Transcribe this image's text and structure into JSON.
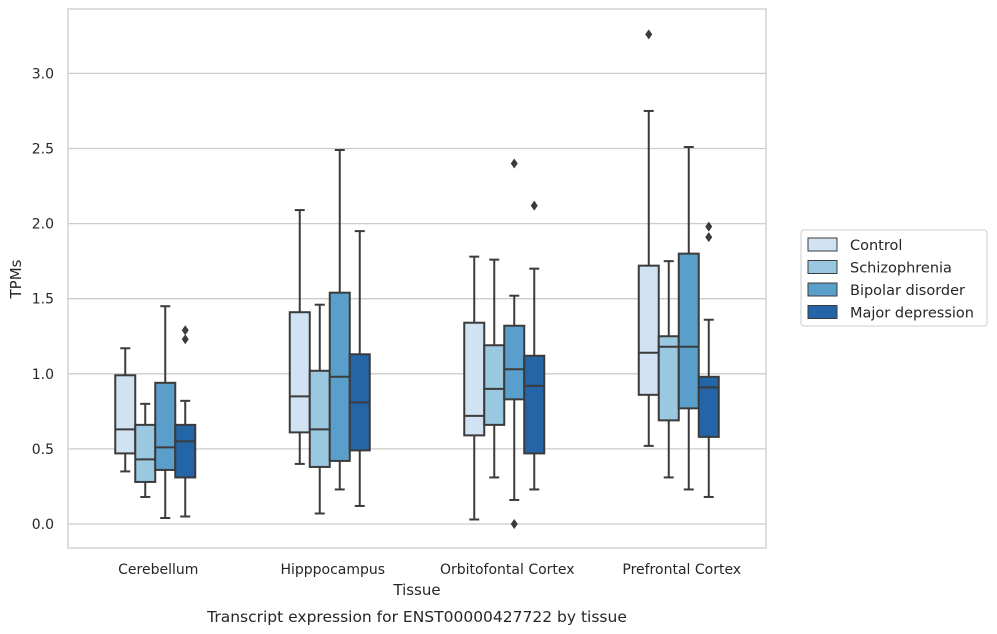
{
  "chart_data": {
    "type": "box",
    "caption": "Transcript expression for ENST00000427722 by tissue",
    "xlabel": "Tissue",
    "ylabel": "TPMs",
    "ylim": [
      -0.15,
      3.45
    ],
    "yticks": [
      0.0,
      0.5,
      1.0,
      1.5,
      2.0,
      2.5,
      3.0
    ],
    "ytick_labels": [
      "0.0",
      "0.5",
      "1.0",
      "1.5",
      "2.0",
      "2.5",
      "3.0"
    ],
    "grid": "horizontal",
    "legend_position": "right",
    "categories": [
      "Cerebellum",
      "Hipppocampus",
      "Orbitofontal Cortex",
      "Prefrontal Cortex"
    ],
    "series": [
      {
        "name": "Control",
        "color": "#d1e2f2",
        "boxes": [
          {
            "whislo": 0.35,
            "q1": 0.47,
            "med": 0.63,
            "q3": 0.99,
            "whishi": 1.17,
            "fliers": []
          },
          {
            "whislo": 0.4,
            "q1": 0.61,
            "med": 0.85,
            "q3": 1.41,
            "whishi": 2.09,
            "fliers": []
          },
          {
            "whislo": 0.03,
            "q1": 0.59,
            "med": 0.72,
            "q3": 1.34,
            "whishi": 1.78,
            "fliers": []
          },
          {
            "whislo": 0.52,
            "q1": 0.86,
            "med": 1.14,
            "q3": 1.72,
            "whishi": 2.75,
            "fliers": [
              3.26
            ]
          }
        ]
      },
      {
        "name": "Schizophrenia",
        "color": "#9ac8e0",
        "boxes": [
          {
            "whislo": 0.18,
            "q1": 0.28,
            "med": 0.43,
            "q3": 0.66,
            "whishi": 0.8,
            "fliers": []
          },
          {
            "whislo": 0.07,
            "q1": 0.38,
            "med": 0.63,
            "q3": 1.02,
            "whishi": 1.46,
            "fliers": []
          },
          {
            "whislo": 0.31,
            "q1": 0.66,
            "med": 0.9,
            "q3": 1.19,
            "whishi": 1.76,
            "fliers": []
          },
          {
            "whislo": 0.31,
            "q1": 0.69,
            "med": 1.18,
            "q3": 1.25,
            "whishi": 1.75,
            "fliers": []
          }
        ]
      },
      {
        "name": "Bipolar disorder",
        "color": "#5a9fcb",
        "boxes": [
          {
            "whislo": 0.04,
            "q1": 0.36,
            "med": 0.51,
            "q3": 0.94,
            "whishi": 1.45,
            "fliers": []
          },
          {
            "whislo": 0.23,
            "q1": 0.42,
            "med": 0.98,
            "q3": 1.54,
            "whishi": 2.49,
            "fliers": []
          },
          {
            "whislo": 0.16,
            "q1": 0.83,
            "med": 1.03,
            "q3": 1.32,
            "whishi": 1.52,
            "fliers": [
              0.0,
              2.4
            ]
          },
          {
            "whislo": 0.23,
            "q1": 0.77,
            "med": 1.18,
            "q3": 1.8,
            "whishi": 2.51,
            "fliers": []
          }
        ]
      },
      {
        "name": "Major depression",
        "color": "#2465a8",
        "boxes": [
          {
            "whislo": 0.05,
            "q1": 0.31,
            "med": 0.55,
            "q3": 0.66,
            "whishi": 0.82,
            "fliers": [
              1.23,
              1.29
            ]
          },
          {
            "whislo": 0.12,
            "q1": 0.49,
            "med": 0.81,
            "q3": 1.13,
            "whishi": 1.95,
            "fliers": []
          },
          {
            "whislo": 0.23,
            "q1": 0.47,
            "med": 0.92,
            "q3": 1.12,
            "whishi": 1.7,
            "fliers": [
              2.12
            ]
          },
          {
            "whislo": 0.18,
            "q1": 0.58,
            "med": 0.91,
            "q3": 0.98,
            "whishi": 1.36,
            "fliers": [
              1.91,
              1.98
            ]
          }
        ]
      }
    ]
  }
}
